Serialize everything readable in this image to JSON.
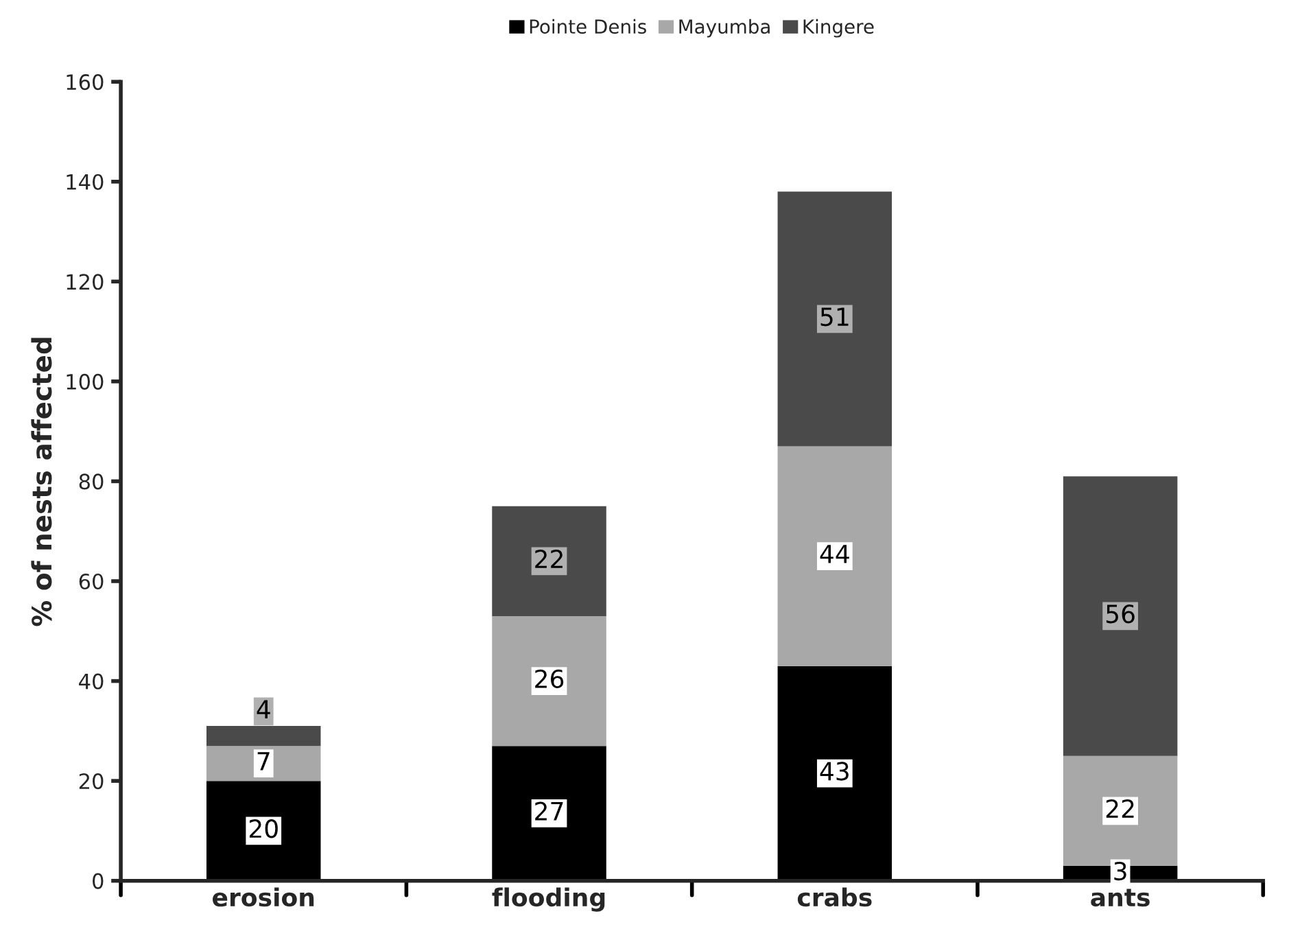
{
  "chart_data": {
    "type": "bar",
    "stacked": true,
    "ylabel": "% of nests affected",
    "categories": [
      "erosion",
      "flooding",
      "crabs",
      "ants"
    ],
    "series": [
      {
        "name": "Pointe Denis",
        "color": "#000000",
        "values": [
          20,
          27,
          43,
          3
        ]
      },
      {
        "name": "Mayumba",
        "color": "#a8a8a8",
        "values": [
          7,
          26,
          44,
          22
        ]
      },
      {
        "name": "Kingere",
        "color": "#4a4a4a",
        "values": [
          4,
          22,
          51,
          56
        ]
      }
    ],
    "ylim": [
      0,
      160
    ],
    "yticks": [
      0,
      20,
      40,
      60,
      80,
      100,
      120,
      140,
      160
    ],
    "data_labels": true,
    "legend": "top",
    "grid": false
  }
}
